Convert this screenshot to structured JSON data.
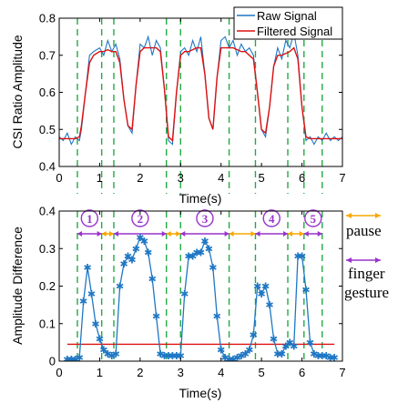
{
  "chart_data": [
    {
      "type": "line",
      "ylabel": "CSI Ratio Amplitude",
      "xlabel": "Time(s)",
      "xlim": [
        0,
        7
      ],
      "ylim": [
        0.4,
        0.8
      ],
      "xticks": [
        "0",
        "1",
        "2",
        "3",
        "4",
        "5",
        "6",
        "7"
      ],
      "yticks": [
        "0.4",
        "0.5",
        "0.6",
        "0.7",
        "0.8"
      ],
      "legend_position": "top-right",
      "series": [
        {
          "name": "Raw Signal",
          "color": "#1f77c4",
          "x": [
            0.0,
            0.1,
            0.2,
            0.3,
            0.4,
            0.5,
            0.55,
            0.65,
            0.75,
            0.85,
            1.0,
            1.1,
            1.2,
            1.3,
            1.4,
            1.5,
            1.6,
            1.7,
            1.8,
            1.9,
            2.0,
            2.1,
            2.2,
            2.3,
            2.4,
            2.5,
            2.6,
            2.7,
            2.8,
            2.9,
            3.0,
            3.1,
            3.2,
            3.3,
            3.4,
            3.5,
            3.6,
            3.7,
            3.8,
            3.9,
            4.0,
            4.1,
            4.2,
            4.3,
            4.4,
            4.5,
            4.6,
            4.7,
            4.8,
            4.9,
            5.0,
            5.1,
            5.2,
            5.3,
            5.4,
            5.5,
            5.6,
            5.7,
            5.8,
            5.9,
            6.0,
            6.1,
            6.2,
            6.3,
            6.4,
            6.5,
            6.6,
            6.7,
            6.8,
            6.9,
            7.0
          ],
          "values": [
            0.48,
            0.47,
            0.49,
            0.46,
            0.48,
            0.47,
            0.5,
            0.6,
            0.7,
            0.71,
            0.72,
            0.7,
            0.74,
            0.71,
            0.73,
            0.69,
            0.58,
            0.51,
            0.49,
            0.62,
            0.73,
            0.72,
            0.75,
            0.7,
            0.74,
            0.72,
            0.61,
            0.47,
            0.46,
            0.6,
            0.71,
            0.72,
            0.7,
            0.74,
            0.71,
            0.75,
            0.65,
            0.53,
            0.5,
            0.64,
            0.74,
            0.75,
            0.72,
            0.74,
            0.7,
            0.73,
            0.71,
            0.72,
            0.7,
            0.6,
            0.5,
            0.48,
            0.56,
            0.67,
            0.72,
            0.69,
            0.74,
            0.72,
            0.76,
            0.7,
            0.56,
            0.47,
            0.48,
            0.46,
            0.48,
            0.47,
            0.49,
            0.47,
            0.48,
            0.47,
            0.48
          ]
        },
        {
          "name": "Filtered Signal",
          "color": "#dd1111",
          "x": [
            0.0,
            0.1,
            0.2,
            0.3,
            0.4,
            0.5,
            0.55,
            0.65,
            0.75,
            0.85,
            1.0,
            1.1,
            1.2,
            1.3,
            1.4,
            1.5,
            1.6,
            1.7,
            1.8,
            1.9,
            2.0,
            2.1,
            2.2,
            2.3,
            2.4,
            2.5,
            2.6,
            2.7,
            2.8,
            2.9,
            3.0,
            3.1,
            3.2,
            3.3,
            3.4,
            3.5,
            3.6,
            3.7,
            3.8,
            3.9,
            4.0,
            4.1,
            4.2,
            4.3,
            4.4,
            4.5,
            4.6,
            4.7,
            4.8,
            4.9,
            5.0,
            5.1,
            5.2,
            5.3,
            5.4,
            5.5,
            5.6,
            5.7,
            5.8,
            5.9,
            6.0,
            6.1,
            6.2,
            6.3,
            6.4,
            6.5,
            6.6,
            6.7,
            6.8,
            6.9,
            7.0
          ],
          "values": [
            0.475,
            0.475,
            0.475,
            0.475,
            0.475,
            0.48,
            0.51,
            0.6,
            0.68,
            0.7,
            0.71,
            0.71,
            0.715,
            0.71,
            0.71,
            0.68,
            0.58,
            0.51,
            0.5,
            0.62,
            0.71,
            0.72,
            0.72,
            0.72,
            0.72,
            0.71,
            0.61,
            0.48,
            0.47,
            0.6,
            0.7,
            0.71,
            0.71,
            0.715,
            0.72,
            0.72,
            0.65,
            0.53,
            0.5,
            0.64,
            0.72,
            0.72,
            0.72,
            0.72,
            0.715,
            0.71,
            0.71,
            0.7,
            0.69,
            0.6,
            0.5,
            0.49,
            0.56,
            0.67,
            0.7,
            0.7,
            0.705,
            0.71,
            0.72,
            0.69,
            0.56,
            0.48,
            0.475,
            0.475,
            0.475,
            0.475,
            0.475,
            0.475,
            0.475,
            0.475,
            0.475
          ]
        }
      ]
    },
    {
      "type": "line",
      "ylabel": "Amplitude Difference",
      "xlabel": "Time(s)",
      "xlim": [
        0,
        7
      ],
      "ylim": [
        0,
        0.4
      ],
      "xticks": [
        "0",
        "1",
        "2",
        "3",
        "4",
        "5",
        "6",
        "7"
      ],
      "yticks": [
        "0",
        "0.1",
        "0.2",
        "0.3",
        "0.4"
      ],
      "series": [
        {
          "color": "#1f77c4",
          "marker": "star",
          "x": [
            0.2,
            0.3,
            0.4,
            0.5,
            0.6,
            0.7,
            0.8,
            0.9,
            1.0,
            1.1,
            1.2,
            1.3,
            1.4,
            1.5,
            1.6,
            1.7,
            1.8,
            1.9,
            2.0,
            2.1,
            2.2,
            2.3,
            2.4,
            2.5,
            2.6,
            2.7,
            2.8,
            2.9,
            3.0,
            3.1,
            3.2,
            3.3,
            3.4,
            3.5,
            3.6,
            3.7,
            3.8,
            3.9,
            4.0,
            4.1,
            4.2,
            4.3,
            4.4,
            4.5,
            4.6,
            4.7,
            4.8,
            4.9,
            5.0,
            5.1,
            5.2,
            5.3,
            5.4,
            5.5,
            5.6,
            5.7,
            5.8,
            5.9,
            6.0,
            6.1,
            6.2,
            6.3,
            6.4,
            6.5,
            6.6,
            6.7,
            6.8
          ],
          "values": [
            0.005,
            0.005,
            0.005,
            0.01,
            0.16,
            0.25,
            0.18,
            0.1,
            0.06,
            0.03,
            0.02,
            0.015,
            0.02,
            0.2,
            0.26,
            0.28,
            0.27,
            0.3,
            0.33,
            0.32,
            0.29,
            0.22,
            0.12,
            0.02,
            0.015,
            0.015,
            0.015,
            0.015,
            0.015,
            0.18,
            0.28,
            0.28,
            0.29,
            0.29,
            0.32,
            0.3,
            0.25,
            0.12,
            0.03,
            0.01,
            0.005,
            0.005,
            0.01,
            0.015,
            0.02,
            0.03,
            0.07,
            0.2,
            0.18,
            0.2,
            0.15,
            0.06,
            0.02,
            0.02,
            0.04,
            0.05,
            0.04,
            0.28,
            0.28,
            0.19,
            0.05,
            0.02,
            0.015,
            0.015,
            0.015,
            0.01,
            0.01
          ]
        },
        {
          "color": "#dd1111",
          "x": [
            0.2,
            6.8
          ],
          "values": [
            0.045,
            0.045
          ]
        }
      ],
      "annotations": [
        {
          "label": "1",
          "segment": [
            0.45,
            1.05
          ]
        },
        {
          "label": "2",
          "segment": [
            1.35,
            2.65
          ]
        },
        {
          "label": "3",
          "segment": [
            3.0,
            4.2
          ]
        },
        {
          "label": "4",
          "segment": [
            4.85,
            5.65
          ]
        },
        {
          "label": "5",
          "segment": [
            6.05,
            6.5
          ]
        }
      ],
      "pauses": [
        [
          1.05,
          1.35
        ],
        [
          2.65,
          3.0
        ],
        [
          4.2,
          4.85
        ],
        [
          5.65,
          6.05
        ]
      ]
    }
  ],
  "vlines_x": [
    0.45,
    1.05,
    1.35,
    2.65,
    3.0,
    4.2,
    4.85,
    5.65,
    6.05,
    6.5
  ],
  "circled_labels": [
    "①",
    "②",
    "③",
    "④",
    "⑤"
  ],
  "side_legend": {
    "pause": "pause",
    "gesture_line1": "finger",
    "gesture_line2": "gesture",
    "pause_color": "#f5a800",
    "gesture_color": "#9933cc"
  }
}
